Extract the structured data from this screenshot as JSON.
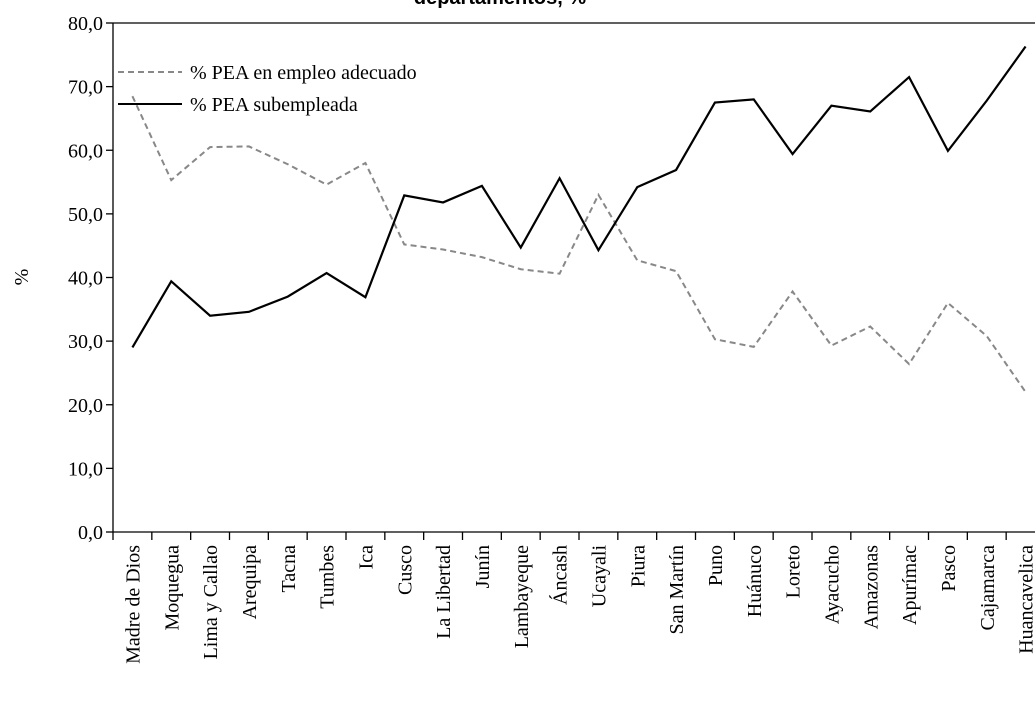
{
  "chart_data": {
    "type": "line",
    "title": "departamentos, %",
    "y_label": "%",
    "categories": [
      "Madre de Dios",
      "Moquegua",
      "Lima y Callao",
      "Arequipa",
      "Tacna",
      "Tumbes",
      "Ica",
      "Cusco",
      "La Libertad",
      "Junín",
      "Lambayeque",
      "Áncash",
      "Ucayali",
      "Piura",
      "San Martín",
      "Puno",
      "Huánuco",
      "Loreto",
      "Ayacucho",
      "Amazonas",
      "Apurímac",
      "Pasco",
      "Cajamarca",
      "Huancavelica"
    ],
    "series": [
      {
        "name": "% PEA en empleo adecuado",
        "color": "#888888",
        "dashed": true,
        "values": [
          68.5,
          55.3,
          60.5,
          60.6,
          57.8,
          54.6,
          58.0,
          45.2,
          44.4,
          43.2,
          41.3,
          40.6,
          53.0,
          42.7,
          41.0,
          30.3,
          29.1,
          37.8,
          29.3,
          32.3,
          26.4,
          36.0,
          30.8,
          22.0
        ]
      },
      {
        "name": "% PEA subempleada",
        "color": "#000000",
        "dashed": false,
        "values": [
          29.0,
          39.4,
          34.0,
          34.6,
          37.0,
          40.7,
          36.9,
          52.9,
          51.8,
          54.4,
          44.7,
          55.6,
          44.3,
          54.2,
          56.9,
          67.5,
          68.0,
          59.4,
          67.0,
          66.1,
          71.5,
          59.9,
          67.8,
          76.3
        ]
      }
    ],
    "ylim": [
      0,
      80
    ],
    "yticks": [
      {
        "value": 0,
        "label": "0,0"
      },
      {
        "value": 10,
        "label": "10,0"
      },
      {
        "value": 20,
        "label": "20,0"
      },
      {
        "value": 30,
        "label": "30,0"
      },
      {
        "value": 40,
        "label": "40,0"
      },
      {
        "value": 50,
        "label": "50,0"
      },
      {
        "value": 60,
        "label": "60,0"
      },
      {
        "value": 70,
        "label": "70,0"
      },
      {
        "value": 80,
        "label": "80,0"
      }
    ],
    "legend": "upper left",
    "grid": false
  }
}
